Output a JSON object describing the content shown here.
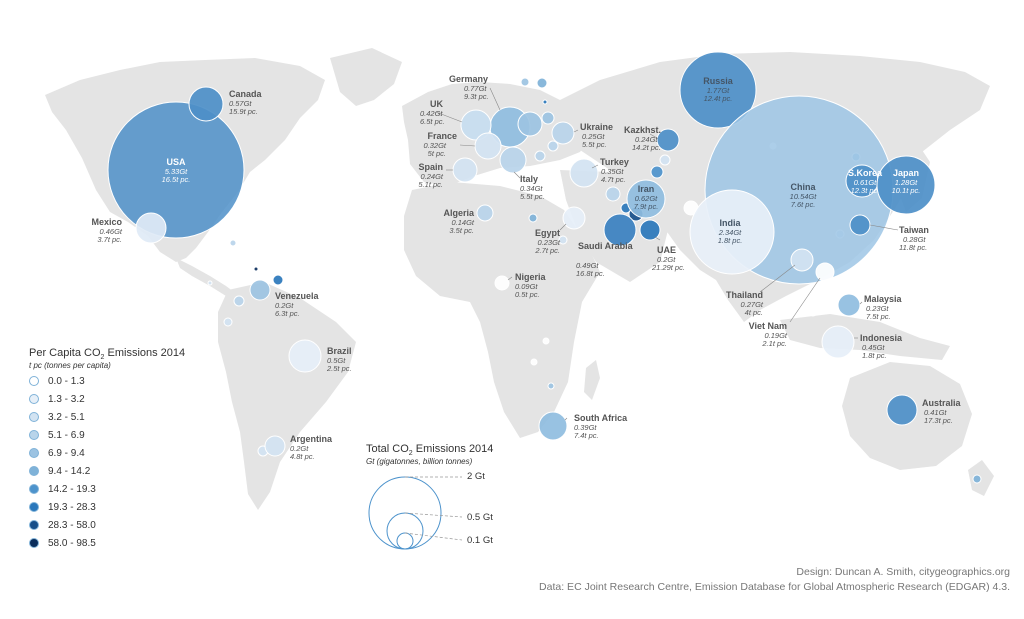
{
  "colors": {
    "land": "#e4e4e4",
    "scale": [
      "#ffffff",
      "#e6eff8",
      "#d2e3f2",
      "#b8d4ea",
      "#9cc3e2",
      "#7fb2d8",
      "#4d93cc",
      "#2a77bb",
      "#174f8a",
      "#0b2e5c"
    ]
  },
  "legend": {
    "title": "Per Capita CO",
    "title_sub": "2",
    "title_tail": " Emissions 2014",
    "subtitle": "t pc (tonnes per capita)",
    "classes": [
      "0.0 - 1.3",
      "1.3 - 3.2",
      "3.2 - 5.1",
      "5.1 - 6.9",
      "6.9 - 9.4",
      "9.4 - 14.2",
      "14.2 - 19.3",
      "19.3 - 28.3",
      "28.3 - 58.0",
      "58.0 - 98.5"
    ]
  },
  "size_legend": {
    "title": "Total CO",
    "title_sub": "2",
    "title_tail": " Emissions 2014",
    "subtitle": "Gt (gigatonnes, billion tonnes)",
    "items": [
      {
        "label": "2 Gt",
        "value": 2
      },
      {
        "label": "0.5 Gt",
        "value": 0.5
      },
      {
        "label": "0.1 Gt",
        "value": 0.1
      }
    ]
  },
  "countries": [
    {
      "name": "USA",
      "total": "5.33Gt",
      "pc": "16.5t pc.",
      "class": 6
    },
    {
      "name": "Canada",
      "total": "0.57Gt",
      "pc": "15.9t pc.",
      "class": 6
    },
    {
      "name": "Mexico",
      "total": "0.46Gt",
      "pc": "3.7t pc.",
      "class": 2
    },
    {
      "name": "Venezuela",
      "total": "0.2Gt",
      "pc": "6.3t pc.",
      "class": 3
    },
    {
      "name": "Brazil",
      "total": "0.5Gt",
      "pc": "2.5t pc.",
      "class": 1
    },
    {
      "name": "Argentina",
      "total": "0.2Gt",
      "pc": "4.8t pc.",
      "class": 2
    },
    {
      "name": "Germany",
      "total": "0.77Gt",
      "pc": "9.3t pc.",
      "class": 4
    },
    {
      "name": "UK",
      "total": "0.42Gt",
      "pc": "6.5t pc.",
      "class": 3
    },
    {
      "name": "France",
      "total": "0.32Gt",
      "pc": "5t pc.",
      "class": 2
    },
    {
      "name": "Spain",
      "total": "0.24Gt",
      "pc": "5.1t pc.",
      "class": 2
    },
    {
      "name": "Italy",
      "total": "0.34Gt",
      "pc": "5.5t pc.",
      "class": 3
    },
    {
      "name": "Ukraine",
      "total": "0.25Gt",
      "pc": "5.5t pc.",
      "class": 3
    },
    {
      "name": "Turkey",
      "total": "0.35Gt",
      "pc": "4.7t pc.",
      "class": 2
    },
    {
      "name": "Russia",
      "total": "1.77Gt",
      "pc": "12.4t pc.",
      "class": 5
    },
    {
      "name": "Kazkhst.",
      "total": "0.24Gt",
      "pc": "14.2t pc.",
      "class": 5
    },
    {
      "name": "Algeria",
      "total": "0.14Gt",
      "pc": "3.5t pc.",
      "class": 2
    },
    {
      "name": "Egypt",
      "total": "0.23Gt",
      "pc": "2.7t pc.",
      "class": 1
    },
    {
      "name": "Iran",
      "total": "0.62Gt",
      "pc": "7.9t pc.",
      "class": 4
    },
    {
      "name": "Saudi Arabia",
      "total": "0.49Gt",
      "pc": "16.8t pc.",
      "class": 6
    },
    {
      "name": "UAE",
      "total": "0.2Gt",
      "pc": "21.29t pc.",
      "class": 7
    },
    {
      "name": "Nigeria",
      "total": "0.09Gt",
      "pc": "0.5t pc.",
      "class": 0
    },
    {
      "name": "South Africa",
      "total": "0.39Gt",
      "pc": "7.4t pc.",
      "class": 4
    },
    {
      "name": "China",
      "total": "10.54Gt",
      "pc": "7.6t pc.",
      "class": 4
    },
    {
      "name": "India",
      "total": "2.34Gt",
      "pc": "1.8t pc.",
      "class": 1
    },
    {
      "name": "S.Korea",
      "total": "0.61Gt",
      "pc": "12.3t pc.",
      "class": 5
    },
    {
      "name": "Japan",
      "total": "1.28Gt",
      "pc": "10.1t pc.",
      "class": 5
    },
    {
      "name": "Taiwan",
      "total": "0.28Gt",
      "pc": "11.8t pc.",
      "class": 5
    },
    {
      "name": "Thailand",
      "total": "0.27Gt",
      "pc": "4t pc.",
      "class": 2
    },
    {
      "name": "Viet Nam",
      "total": "0.19Gt",
      "pc": "2.1t pc.",
      "class": 1
    },
    {
      "name": "Malaysia",
      "total": "0.23Gt",
      "pc": "7.5t pc.",
      "class": 4
    },
    {
      "name": "Indonesia",
      "total": "0.45Gt",
      "pc": "1.8t pc.",
      "class": 1
    },
    {
      "name": "Australia",
      "total": "0.41Gt",
      "pc": "17.3t pc.",
      "class": 6
    }
  ],
  "credits": {
    "design": "Design: Duncan A. Smith, citygeographics.org",
    "data": "Data: EC Joint Research Centre, Emission Database for Global Atmospheric Research (EDGAR) 4.3."
  }
}
